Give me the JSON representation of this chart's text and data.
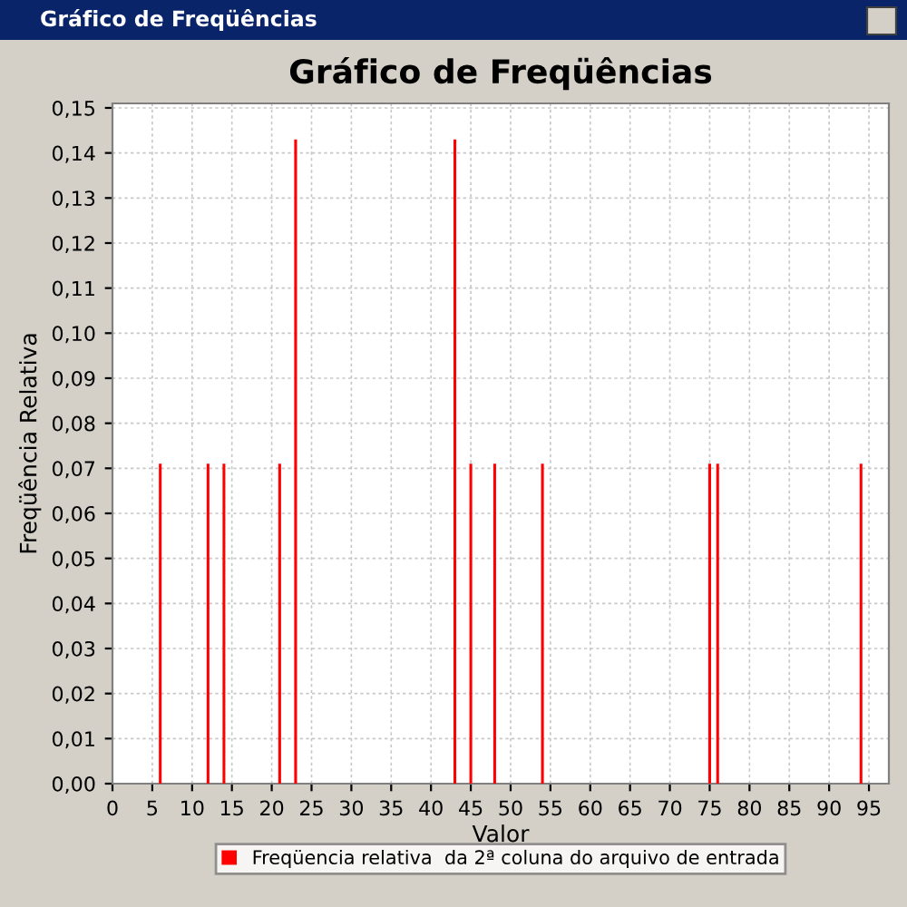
{
  "chart_data": {
    "type": "bar",
    "title": "Gráfico de Freqüências",
    "xlabel": "Valor",
    "ylabel": "Freqüência Relativa",
    "annotations": [
      "Gráfico de Freqüências"
    ],
    "x": [
      6,
      12,
      14,
      21,
      23,
      43,
      45,
      48,
      54,
      75,
      76,
      94
    ],
    "series": [
      {
        "name": "Freqüencia relativa  da 2ª coluna do arquivo de entrada",
        "color": "#ff0000",
        "values": [
          0.071,
          0.071,
          0.071,
          0.071,
          0.143,
          0.143,
          0.071,
          0.071,
          0.071,
          0.071,
          0.071,
          0.071
        ]
      }
    ],
    "xlim": [
      0,
      97.5
    ],
    "xticks": [
      0,
      5,
      10,
      15,
      20,
      25,
      30,
      35,
      40,
      45,
      50,
      55,
      60,
      65,
      70,
      75,
      80,
      85,
      90,
      95
    ],
    "ylim": [
      0,
      0.151
    ],
    "yticks": [
      {
        "value": 0,
        "label": "0,00"
      },
      {
        "value": 0.01,
        "label": "0,01"
      },
      {
        "value": 0.02,
        "label": "0,02"
      },
      {
        "value": 0.03,
        "label": "0,03"
      },
      {
        "value": 0.04,
        "label": "0,04"
      },
      {
        "value": 0.05,
        "label": "0,05"
      },
      {
        "value": 0.06,
        "label": "0,06"
      },
      {
        "value": 0.07,
        "label": "0,07"
      },
      {
        "value": 0.08,
        "label": "0,08"
      },
      {
        "value": 0.09,
        "label": "0,09"
      },
      {
        "value": 0.1,
        "label": "0,10"
      },
      {
        "value": 0.11,
        "label": "0,11"
      },
      {
        "value": 0.12,
        "label": "0,12"
      },
      {
        "value": 0.13,
        "label": "0,13"
      },
      {
        "value": 0.14,
        "label": "0,14"
      },
      {
        "value": 0.15,
        "label": "0,15"
      }
    ],
    "grid": true,
    "legend": "bottom"
  }
}
